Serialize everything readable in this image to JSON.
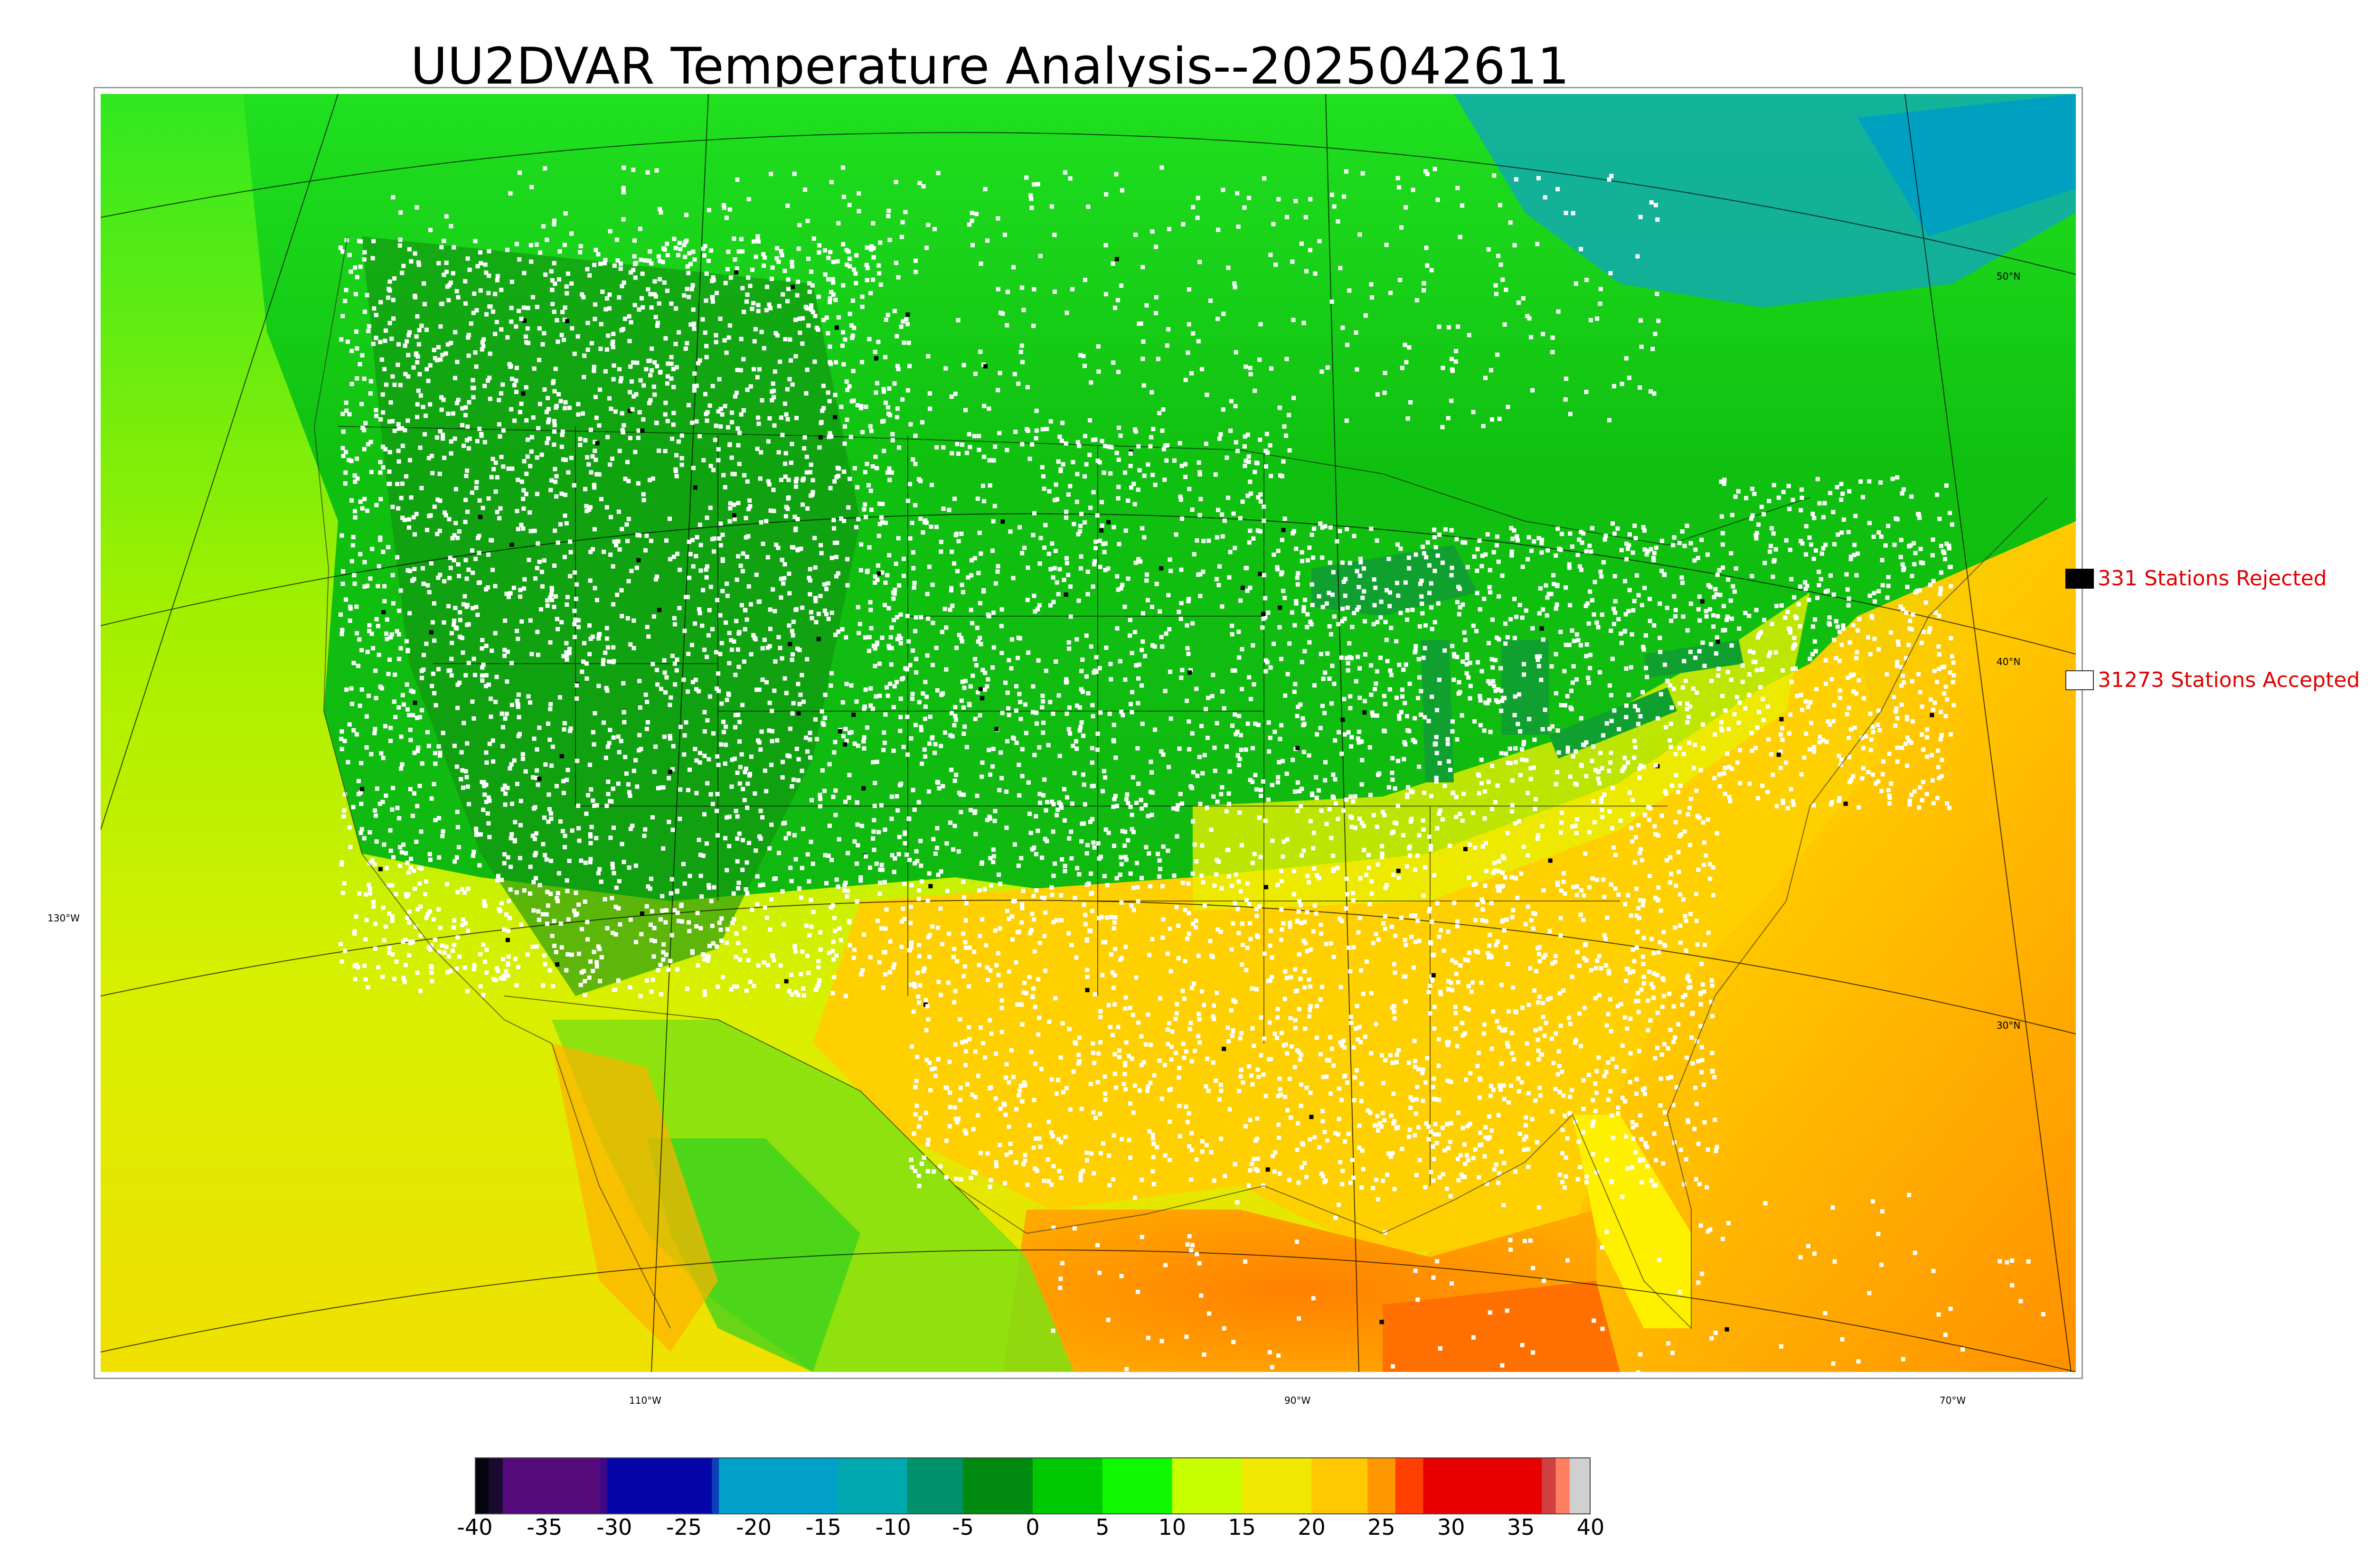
{
  "title": "UU2DVAR Temperature Analysis--2025042611",
  "graticule": {
    "longitude_labels": [
      "110°W",
      "90°W",
      "70°W"
    ],
    "latitude_labels_right": [
      "50°N",
      "40°N",
      "30°N"
    ],
    "latitude_labels_left": [
      "130°W"
    ]
  },
  "legend": {
    "rejected": {
      "label": "331 Stations Rejected",
      "color": "#000000"
    },
    "accepted": {
      "label": "31273 Stations Accepted",
      "color": "#ffffff"
    }
  },
  "colorbar": {
    "min": -40,
    "max": 40,
    "tick_labels": [
      "-40",
      "-35",
      "-30",
      "-25",
      "-20",
      "-15",
      "-10",
      "-5",
      "0",
      "5",
      "10",
      "15",
      "20",
      "25",
      "30",
      "35",
      "40"
    ],
    "segments": [
      {
        "from": -40,
        "to": -39,
        "color": "#050510"
      },
      {
        "from": -39,
        "to": -38,
        "color": "#1a0a30"
      },
      {
        "from": -38,
        "to": -31,
        "color": "#540a7a"
      },
      {
        "from": -31,
        "to": -30.5,
        "color": "#3a0a8a"
      },
      {
        "from": -30.5,
        "to": -23,
        "color": "#0505a8"
      },
      {
        "from": -23,
        "to": -22.5,
        "color": "#0a40b8"
      },
      {
        "from": -22.5,
        "to": -14,
        "color": "#00a0c8"
      },
      {
        "from": -14,
        "to": -9,
        "color": "#00a8b0"
      },
      {
        "from": -9,
        "to": -5,
        "color": "#00906a"
      },
      {
        "from": -5,
        "to": 0,
        "color": "#008a10"
      },
      {
        "from": 0,
        "to": 5,
        "color": "#00c800"
      },
      {
        "from": 5,
        "to": 10,
        "color": "#10f800"
      },
      {
        "from": 10,
        "to": 15,
        "color": "#c8ff00"
      },
      {
        "from": 15,
        "to": 20,
        "color": "#f0e800"
      },
      {
        "from": 20,
        "to": 24,
        "color": "#ffc800"
      },
      {
        "from": 24,
        "to": 26,
        "color": "#ff9800"
      },
      {
        "from": 26,
        "to": 28,
        "color": "#ff4000"
      },
      {
        "from": 28,
        "to": 36.5,
        "color": "#e80000"
      },
      {
        "from": 36.5,
        "to": 37.5,
        "color": "#d04040"
      },
      {
        "from": 37.5,
        "to": 38.5,
        "color": "#ff8060"
      },
      {
        "from": 38.5,
        "to": 40,
        "color": "#d0d0d0"
      }
    ]
  },
  "colors": {
    "ocean_west": "#c8f000",
    "ocean_gulf": "#ff9000",
    "north_land": "#00b800",
    "cold_lake": "#10a0b0",
    "station_accepted": "#ffffff",
    "station_rejected": "#000000"
  }
}
